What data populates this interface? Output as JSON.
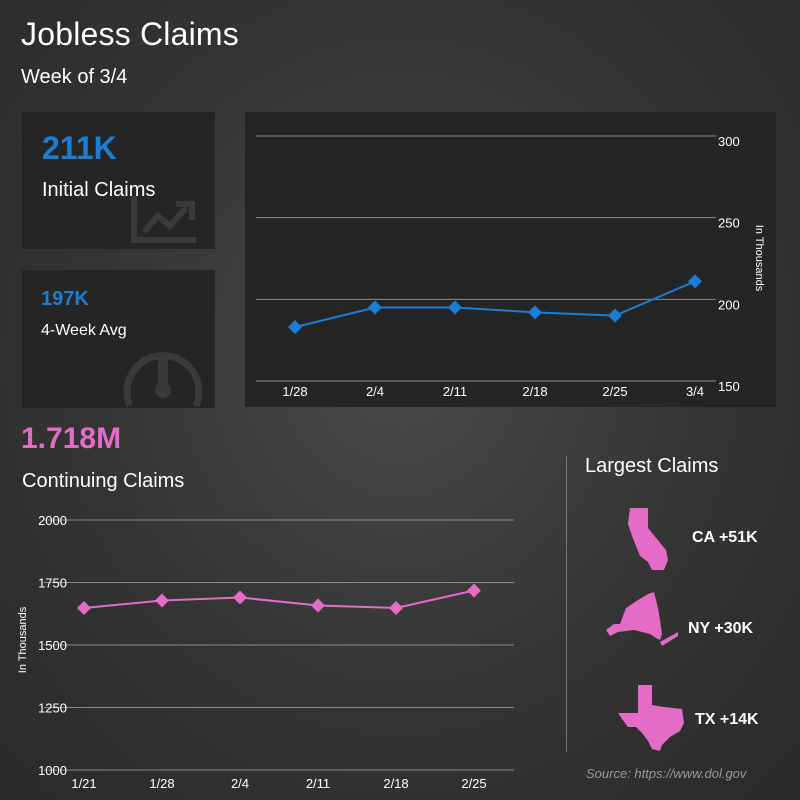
{
  "header": {
    "title": "Jobless Claims",
    "subtitle": "Week of 3/4"
  },
  "initial_claims": {
    "value": "211K",
    "label": "Initial Claims",
    "icon": "chart-trend-icon"
  },
  "four_week_avg": {
    "value": "197K",
    "label": "4-Week Avg",
    "icon": "gauge-icon"
  },
  "continuing_claims": {
    "value": "1.718M",
    "label": "Continuing Claims"
  },
  "largest_claims": {
    "title": "Largest Claims",
    "states": [
      {
        "name": "CA +51K",
        "icon": "california-icon"
      },
      {
        "name": "NY +30K",
        "icon": "new-york-icon"
      },
      {
        "name": "TX +14K",
        "icon": "texas-icon"
      }
    ]
  },
  "source": "Source: https://www.dol.gov",
  "colors": {
    "blue": "#1a7fd4",
    "pink": "#e46cc6"
  },
  "chart_data": [
    {
      "type": "line",
      "x": [
        "1/28",
        "2/4",
        "2/11",
        "2/18",
        "2/25",
        "3/4"
      ],
      "series": [
        {
          "values": [
            183,
            195,
            195,
            192,
            190,
            211
          ]
        }
      ],
      "ylabel": "In Thousands",
      "ylim": [
        150,
        300
      ],
      "yticks": [
        "150",
        "200",
        "250",
        "300"
      ],
      "grid": true,
      "color": "#1a7fd4"
    },
    {
      "type": "line",
      "x": [
        "1/21",
        "1/28",
        "2/4",
        "2/11",
        "2/18",
        "2/25"
      ],
      "series": [
        {
          "values": [
            1648,
            1678,
            1690,
            1658,
            1648,
            1718
          ]
        }
      ],
      "ylabel": "In Thousands",
      "ylim": [
        1000,
        2000
      ],
      "yticks": [
        "1000",
        "1250",
        "1500",
        "1750",
        "2000"
      ],
      "grid": true,
      "color": "#e46cc6"
    }
  ]
}
